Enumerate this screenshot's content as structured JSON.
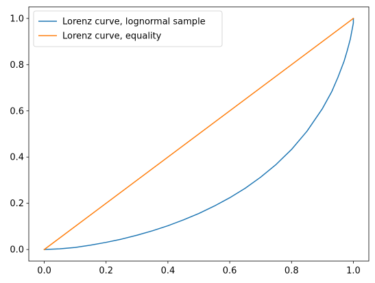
{
  "chart_data": {
    "type": "line",
    "title": "",
    "xlabel": "",
    "ylabel": "",
    "xlim": [
      -0.05,
      1.05
    ],
    "ylim": [
      -0.05,
      1.05
    ],
    "xticks": [
      0.0,
      0.2,
      0.4,
      0.6,
      0.8,
      1.0
    ],
    "yticks": [
      0.0,
      0.2,
      0.4,
      0.6,
      0.8,
      1.0
    ],
    "xtick_labels": [
      "0.0",
      "0.2",
      "0.4",
      "0.6",
      "0.8",
      "1.0"
    ],
    "ytick_labels": [
      "0.0",
      "0.2",
      "0.4",
      "0.6",
      "0.8",
      "1.0"
    ],
    "grid": false,
    "legend_position": "top-left",
    "series": [
      {
        "name": "Lorenz curve, lognormal sample",
        "color": "#1f77b4",
        "x": [
          0.0,
          0.05,
          0.1,
          0.15,
          0.2,
          0.25,
          0.3,
          0.35,
          0.4,
          0.45,
          0.5,
          0.55,
          0.6,
          0.65,
          0.7,
          0.75,
          0.8,
          0.85,
          0.9,
          0.93,
          0.95,
          0.97,
          0.98,
          0.99,
          0.995,
          1.0,
          1.0
        ],
        "y": [
          0.0,
          0.003,
          0.009,
          0.019,
          0.031,
          0.045,
          0.062,
          0.081,
          0.103,
          0.128,
          0.156,
          0.188,
          0.224,
          0.265,
          0.313,
          0.368,
          0.433,
          0.512,
          0.61,
          0.683,
          0.745,
          0.815,
          0.86,
          0.91,
          0.945,
          0.98,
          1.0
        ]
      },
      {
        "name": "Lorenz curve, equality",
        "color": "#ff7f0e",
        "x": [
          0.0,
          1.0
        ],
        "y": [
          0.0,
          1.0
        ]
      }
    ]
  }
}
